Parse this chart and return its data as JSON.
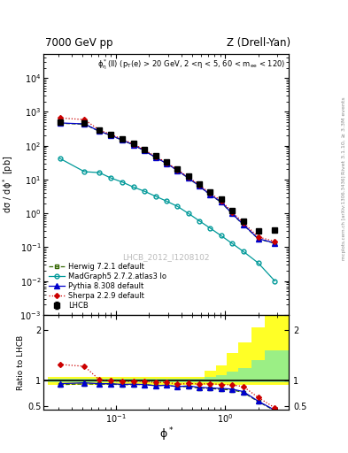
{
  "title_top": "7000 GeV pp",
  "title_right": "Z (Drell-Yan)",
  "annotation": "$\\phi^*_{\\eta}$(ll) ($p_T$(e) > 20 GeV, 2 <$\\eta$ < 5, 60 < $m_{ee}$ < 120)",
  "watermark": "LHCB_2012_I1208102",
  "ylabel_main": "d$\\sigma$ / d$\\phi^*$ [pb]",
  "ylabel_ratio": "Ratio to LHCB",
  "xlabel": "$\\phi^*$",
  "right_label_top": "Rivet 3.1.10, ≥ 3.3M events",
  "right_label_bot": "mcplots.cern.ch [arXiv:1306.3436]",
  "phi_star": [
    0.031,
    0.052,
    0.071,
    0.091,
    0.114,
    0.145,
    0.183,
    0.231,
    0.291,
    0.367,
    0.46,
    0.579,
    0.724,
    0.914,
    1.15,
    1.46,
    2.0,
    2.83
  ],
  "lhcb_y": [
    500,
    460,
    285,
    215,
    160,
    115,
    77,
    50,
    33,
    21,
    12.5,
    7.5,
    4.2,
    2.6,
    1.2,
    0.6,
    0.3,
    0.32
  ],
  "lhcb_yerr": [
    20,
    18,
    12,
    9,
    7,
    5,
    3,
    2,
    1.5,
    0.9,
    0.5,
    0.3,
    0.2,
    0.13,
    0.06,
    0.03,
    0.02,
    0.04
  ],
  "herwig_y": [
    460,
    430,
    265,
    200,
    147,
    106,
    71,
    45,
    30,
    18.5,
    11.0,
    6.4,
    3.55,
    2.15,
    0.98,
    0.46,
    0.175,
    0.13
  ],
  "madgraph_y": [
    42,
    17,
    16,
    11,
    8.5,
    6.0,
    4.5,
    3.2,
    2.3,
    1.6,
    1.0,
    0.6,
    0.37,
    0.22,
    0.13,
    0.075,
    0.034,
    0.01
  ],
  "pythia_y": [
    470,
    440,
    268,
    202,
    148,
    107,
    71,
    45,
    30,
    18.5,
    11.2,
    6.5,
    3.6,
    2.2,
    1.0,
    0.47,
    0.178,
    0.133
  ],
  "sherpa_y": [
    660,
    590,
    290,
    215,
    157,
    113,
    76,
    48,
    32,
    19.5,
    11.8,
    7.0,
    3.95,
    2.4,
    1.1,
    0.53,
    0.2,
    0.148
  ],
  "lhcb_color": "#000000",
  "herwig_color": "#336600",
  "madgraph_color": "#009999",
  "pythia_color": "#0000cc",
  "sherpa_color": "#cc0000",
  "bins_lo": [
    0.024,
    0.04,
    0.06,
    0.08,
    0.102,
    0.128,
    0.162,
    0.206,
    0.26,
    0.328,
    0.412,
    0.518,
    0.65,
    0.818,
    1.03,
    1.3,
    1.73,
    2.3
  ],
  "bins_hi": [
    0.04,
    0.06,
    0.08,
    0.102,
    0.128,
    0.162,
    0.206,
    0.26,
    0.328,
    0.412,
    0.518,
    0.65,
    0.818,
    1.03,
    1.3,
    1.73,
    2.3,
    3.8
  ],
  "band_yellow_lo": [
    0.92,
    0.92,
    0.92,
    0.92,
    0.92,
    0.92,
    0.92,
    0.92,
    0.92,
    0.92,
    0.92,
    0.92,
    0.92,
    0.92,
    0.92,
    0.92,
    0.92,
    0.92
  ],
  "band_yellow_hi": [
    1.08,
    1.08,
    1.08,
    1.08,
    1.08,
    1.08,
    1.08,
    1.08,
    1.08,
    1.08,
    1.08,
    1.08,
    1.2,
    1.3,
    1.55,
    1.75,
    2.05,
    2.5
  ],
  "band_green_lo": [
    0.96,
    0.96,
    0.96,
    0.96,
    0.96,
    0.96,
    0.96,
    0.96,
    0.96,
    0.96,
    0.96,
    0.96,
    0.96,
    0.96,
    0.96,
    0.96,
    0.96,
    0.96
  ],
  "band_green_hi": [
    1.04,
    1.04,
    1.04,
    1.04,
    1.04,
    1.04,
    1.04,
    1.04,
    1.04,
    1.04,
    1.04,
    1.04,
    1.08,
    1.1,
    1.18,
    1.25,
    1.4,
    1.6
  ]
}
